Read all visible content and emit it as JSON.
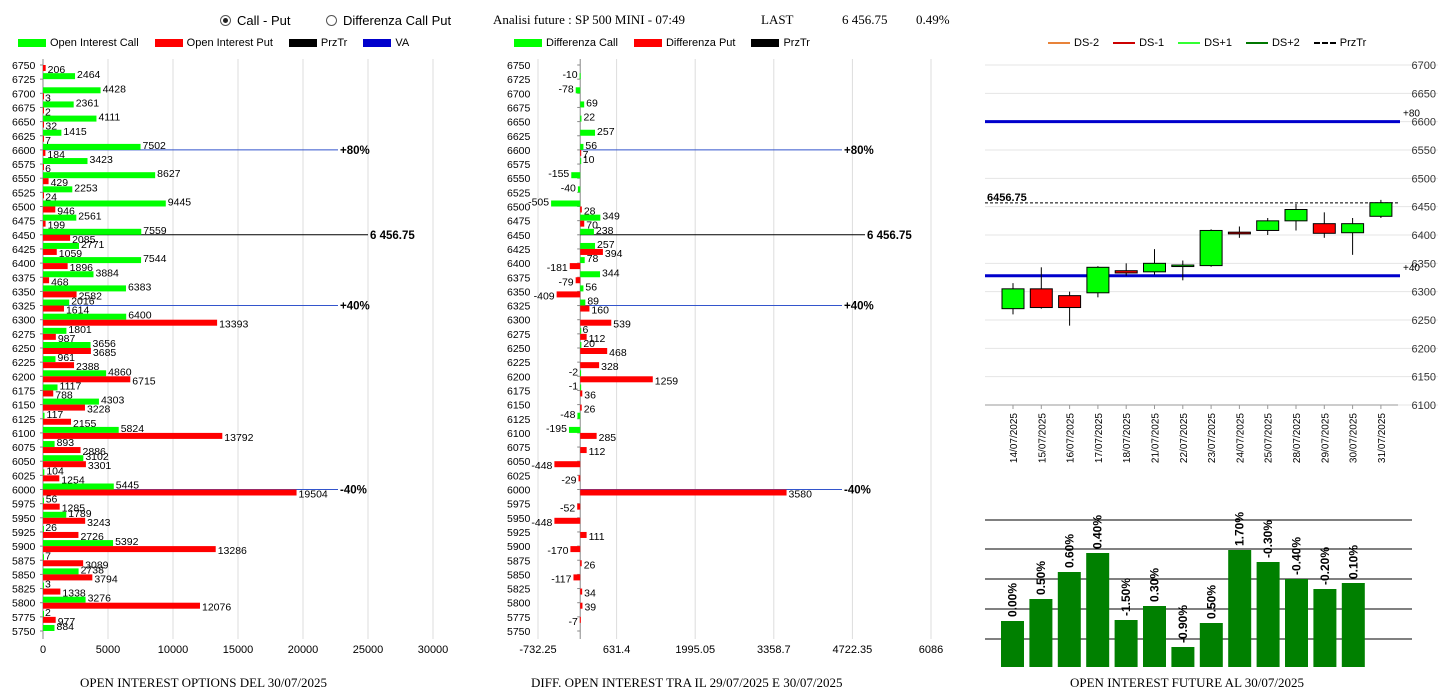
{
  "header": {
    "radio_call_put": "Call - Put",
    "radio_diff": "Differenza Call Put",
    "title": "Analisi future : SP 500 MINI - 07:49",
    "last_label": "LAST",
    "last_value": "6 456.75",
    "change": "0.49%"
  },
  "legend1": [
    "Open Interest Call",
    "Open Interest Put",
    "PrzTr",
    "VA"
  ],
  "legend2": [
    "Differenza Call",
    "Differenza Put",
    "PrzTr"
  ],
  "legend3": [
    "DS-2",
    "DS-1",
    "DS+1",
    "DS+2",
    "PrzTr"
  ],
  "colors": {
    "call": "#00ff00",
    "put": "#ff0000",
    "va": "#0000cc",
    "candle_up": "#00ff00",
    "candle_down": "#ff0000",
    "ds2": "#e8833a",
    "ds1": "#cc0000",
    "dsp1": "#33ff33",
    "dsp2": "#007700",
    "bar": "#008000"
  },
  "footers": {
    "f1": "OPEN INTEREST OPTIONS DEL 30/07/2025",
    "f2": "DIFF. OPEN INTEREST TRA IL 29/07/2025 E 30/07/2025",
    "f3": "OPEN INTEREST FUTURE AL 30/07/2025"
  },
  "chart_data": [
    {
      "type": "bar",
      "orientation": "horizontal",
      "strikes": [
        6750,
        6725,
        6700,
        6675,
        6650,
        6625,
        6600,
        6575,
        6550,
        6525,
        6500,
        6475,
        6450,
        6425,
        6400,
        6375,
        6350,
        6325,
        6300,
        6275,
        6250,
        6225,
        6200,
        6175,
        6150,
        6125,
        6100,
        6075,
        6050,
        6025,
        6000,
        5975,
        5950,
        5925,
        5900,
        5875,
        5850,
        5825,
        5800,
        5775,
        5750
      ],
      "series": [
        {
          "name": "Open Interest Call",
          "values": [
            null,
            2464,
            4428,
            2361,
            4111,
            1415,
            7502,
            3423,
            8627,
            2253,
            9445,
            2561,
            7559,
            2771,
            7544,
            3884,
            6383,
            2016,
            6400,
            1801,
            3656,
            961,
            4860,
            1117,
            4303,
            117,
            5824,
            893,
            3102,
            104,
            5445,
            56,
            1789,
            26,
            5392,
            7,
            2738,
            3,
            3276,
            2,
            884
          ]
        },
        {
          "name": "Open Interest Put",
          "values": [
            206,
            null,
            3,
            2,
            32,
            7,
            184,
            6,
            429,
            24,
            946,
            199,
            2085,
            1059,
            1896,
            468,
            2582,
            1614,
            13393,
            987,
            3685,
            2388,
            6715,
            788,
            3228,
            2155,
            13792,
            2886,
            3301,
            1254,
            19504,
            1285,
            3243,
            2726,
            13286,
            3089,
            3794,
            1338,
            12076,
            977,
            null
          ]
        }
      ],
      "annotations": [
        {
          "strike": 6600,
          "label": "+80%"
        },
        {
          "strike": 6450,
          "label": "6 456.75"
        },
        {
          "strike": 6325,
          "label": "+40%"
        },
        {
          "strike": 6000,
          "label": "-40%"
        }
      ],
      "xticks": [
        "0",
        "5000",
        "10000",
        "15000",
        "20000",
        "25000",
        "30000"
      ],
      "xlim": [
        0,
        30000
      ]
    },
    {
      "type": "bar",
      "orientation": "horizontal",
      "strikes": [
        6750,
        6725,
        6700,
        6675,
        6650,
        6625,
        6600,
        6575,
        6550,
        6525,
        6500,
        6475,
        6450,
        6425,
        6400,
        6375,
        6350,
        6325,
        6300,
        6275,
        6250,
        6225,
        6200,
        6175,
        6150,
        6125,
        6100,
        6075,
        6050,
        6025,
        6000,
        5975,
        5950,
        5925,
        5900,
        5875,
        5850,
        5825,
        5800,
        5775,
        5750
      ],
      "series": [
        {
          "name": "Differenza Call",
          "values": [
            null,
            -10,
            -78,
            69,
            22,
            257,
            56,
            10,
            -155,
            -40,
            -505,
            349,
            238,
            257,
            78,
            344,
            56,
            89,
            null,
            6,
            20,
            null,
            -2,
            -1,
            null,
            -48,
            -195,
            null,
            null,
            null,
            null,
            null,
            null,
            null,
            null,
            null,
            null,
            null,
            null,
            null,
            null
          ]
        },
        {
          "name": "Differenza Put",
          "values": [
            null,
            null,
            null,
            null,
            null,
            null,
            7,
            null,
            null,
            null,
            28,
            70,
            null,
            394,
            -181,
            -79,
            -409,
            160,
            539,
            112,
            468,
            328,
            1259,
            36,
            26,
            null,
            285,
            112,
            -448,
            -29,
            3580,
            -52,
            -448,
            111,
            -170,
            26,
            -117,
            34,
            39,
            -7,
            null
          ]
        }
      ],
      "annotations": [
        {
          "strike": 6600,
          "label": "+80%"
        },
        {
          "strike": 6450,
          "label": "6 456.75"
        },
        {
          "strike": 6325,
          "label": "+40%"
        },
        {
          "strike": 6000,
          "label": "-40%"
        }
      ],
      "xticks": [
        "-732.25",
        "631.4",
        "1995.05",
        "3358.7",
        "4722.35",
        "6086"
      ],
      "xlim": [
        -732.25,
        6086
      ]
    },
    {
      "type": "candlestick",
      "dates": [
        "14/07/2025",
        "15/07/2025",
        "16/07/2025",
        "17/07/2025",
        "18/07/2025",
        "21/07/2025",
        "22/07/2025",
        "23/07/2025",
        "24/07/2025",
        "25/07/2025",
        "28/07/2025",
        "29/07/2025",
        "30/07/2025",
        "31/07/2025"
      ],
      "ohlc": [
        [
          6270,
          6315,
          6260,
          6305
        ],
        [
          6305,
          6343,
          6270,
          6272
        ],
        [
          6293,
          6300,
          6240,
          6272
        ],
        [
          6298,
          6345,
          6290,
          6343
        ],
        [
          6337,
          6350,
          6328,
          6333
        ],
        [
          6335,
          6375,
          6330,
          6350
        ],
        [
          6347,
          6355,
          6320,
          6347
        ],
        [
          6346,
          6410,
          6344,
          6408
        ],
        [
          6405,
          6415,
          6395,
          6402
        ],
        [
          6408,
          6430,
          6400,
          6425
        ],
        [
          6425,
          6455,
          6408,
          6445
        ],
        [
          6420,
          6440,
          6395,
          6403
        ],
        [
          6404,
          6430,
          6365,
          6420
        ],
        [
          6433,
          6462,
          6430,
          6457
        ]
      ],
      "hlines": [
        {
          "value": 6600,
          "label": "+80"
        },
        {
          "value": 6328,
          "label": "+40"
        }
      ],
      "last": "6456.75",
      "yticks": [
        "6700",
        "6650",
        "6600",
        "6550",
        "6500",
        "6450",
        "6400",
        "6350",
        "6300",
        "6250",
        "6200",
        "6150",
        "6100"
      ],
      "ylim": [
        6100,
        6700
      ]
    },
    {
      "type": "bar",
      "labels": [
        "0.00%",
        "0.50%",
        "0.60%",
        "0.40%",
        "-1.50%",
        "0.30%",
        "-0.90%",
        "0.50%",
        "1.70%",
        "-0.30%",
        "-0.40%",
        "-0.20%",
        "0.10%"
      ],
      "values": [
        46,
        68,
        95,
        114,
        47,
        61,
        20,
        44,
        117,
        105,
        88,
        78,
        84
      ],
      "value_unit": "relative height"
    }
  ]
}
